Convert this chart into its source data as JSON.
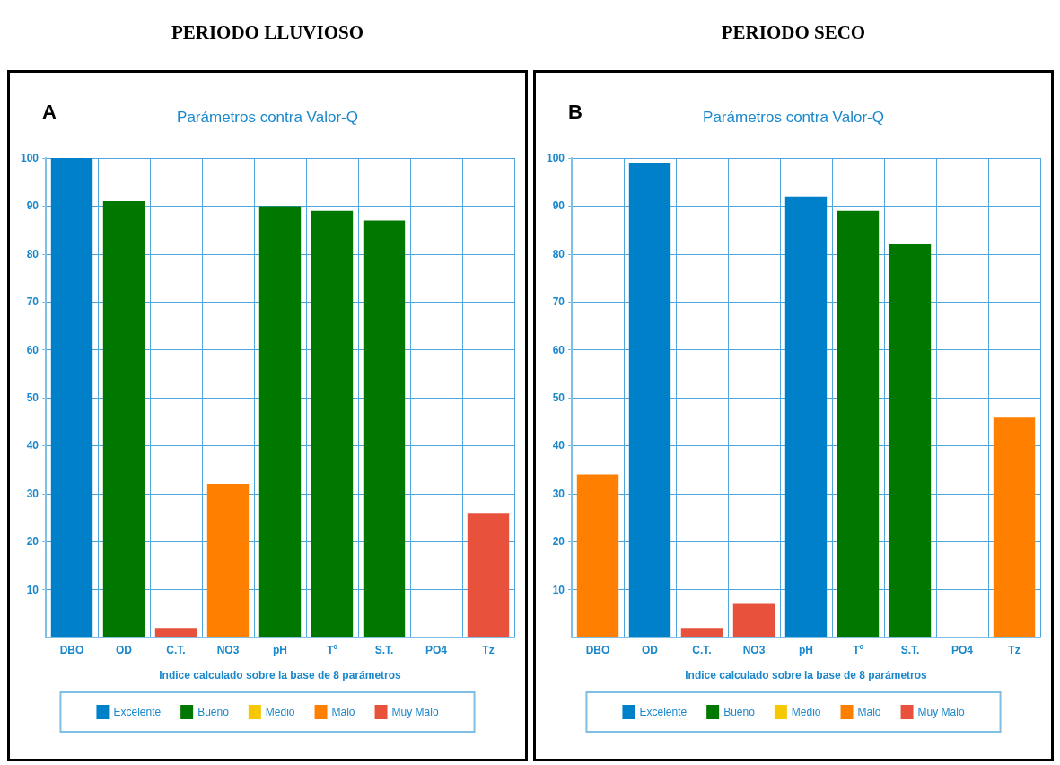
{
  "chart_data": [
    {
      "type": "bar",
      "title": "PERIODO LLUVIOSO",
      "subtitle": "Parámetros contra Valor-Q",
      "annotations": [
        "A"
      ],
      "xlabel": "Indice calculado sobre la base de 8 parámetros",
      "categories": [
        "DBO",
        "OD",
        "C.T.",
        "NO3",
        "pH",
        "Tº",
        "S.T.",
        "PO4",
        "Tz"
      ],
      "stacked": true,
      "series": [
        {
          "name": "Excelente",
          "color": "#0080c8",
          "values": [
            100,
            null,
            null,
            null,
            null,
            null,
            null,
            null,
            null
          ]
        },
        {
          "name": "Bueno",
          "color": "#007800",
          "values": [
            null,
            91,
            null,
            null,
            90,
            89,
            87,
            null,
            null
          ]
        },
        {
          "name": "Medio",
          "color": "#f5c800",
          "values": [
            null,
            null,
            null,
            null,
            null,
            null,
            null,
            null,
            null
          ]
        },
        {
          "name": "Malo",
          "color": "#ff8000",
          "values": [
            null,
            null,
            null,
            32,
            null,
            null,
            null,
            null,
            null
          ]
        },
        {
          "name": "Muy Malo",
          "color": "#e8523c",
          "values": [
            null,
            null,
            2,
            null,
            null,
            null,
            null,
            null,
            26
          ]
        }
      ],
      "ylim": [
        0,
        100
      ],
      "yticks": [
        10,
        20,
        30,
        40,
        50,
        60,
        70,
        80,
        90,
        100
      ],
      "grid": true,
      "legend": "bottom"
    },
    {
      "type": "bar",
      "title": "PERIODO SECO",
      "subtitle": "Parámetros contra Valor-Q",
      "annotations": [
        "B"
      ],
      "xlabel": "Indice calculado sobre la base de 8 parámetros",
      "categories": [
        "DBO",
        "OD",
        "C.T.",
        "NO3",
        "pH",
        "Tº",
        "S.T.",
        "PO4",
        "Tz"
      ],
      "stacked": true,
      "series": [
        {
          "name": "Excelente",
          "color": "#0080c8",
          "values": [
            null,
            99,
            null,
            null,
            92,
            null,
            null,
            null,
            null
          ]
        },
        {
          "name": "Bueno",
          "color": "#007800",
          "values": [
            null,
            null,
            null,
            null,
            null,
            89,
            82,
            null,
            null
          ]
        },
        {
          "name": "Medio",
          "color": "#f5c800",
          "values": [
            null,
            null,
            null,
            null,
            null,
            null,
            null,
            null,
            null
          ]
        },
        {
          "name": "Malo",
          "color": "#ff8000",
          "values": [
            34,
            null,
            null,
            null,
            null,
            null,
            null,
            null,
            46
          ]
        },
        {
          "name": "Muy Malo",
          "color": "#e8523c",
          "values": [
            null,
            null,
            2,
            7,
            null,
            null,
            null,
            null,
            null
          ]
        }
      ],
      "ylim": [
        0,
        100
      ],
      "yticks": [
        10,
        20,
        30,
        40,
        50,
        60,
        70,
        80,
        90,
        100
      ],
      "grid": true,
      "legend": "bottom"
    }
  ]
}
